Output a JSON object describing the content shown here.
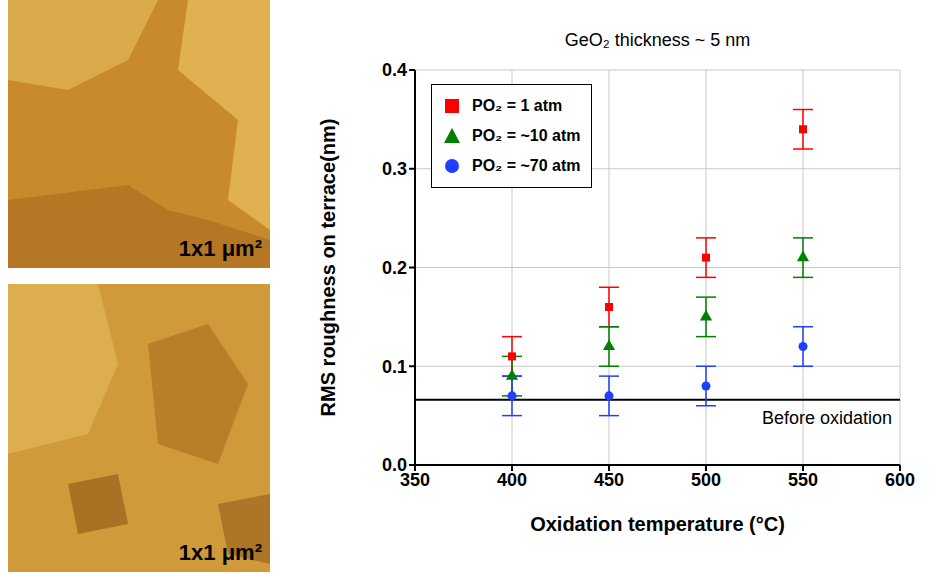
{
  "images": [
    {
      "label": "1x1 μm²"
    },
    {
      "label": "1x1 μm²"
    }
  ],
  "chart_data": {
    "type": "scatter",
    "title": "GeO₂ thickness ~ 5 nm",
    "x_label": "Oxidation temperature (°C)",
    "y_label": "RMS roughness on terrace(nm)",
    "xlim": [
      350,
      600
    ],
    "xticks": [
      350,
      400,
      450,
      500,
      550,
      600
    ],
    "ylim": [
      0,
      0.4
    ],
    "yticks": [
      {
        "value": 0,
        "label": "0.0"
      },
      0.1,
      0.2,
      0.3,
      0.4
    ],
    "grid": true,
    "legend": "upper left",
    "reference_line": {
      "value": 0.066,
      "label": "Before oxidation"
    },
    "series": [
      {
        "name": "PO₂ = 1 atm",
        "color": "#ff0000",
        "marker": "square",
        "x": [
          400,
          450,
          500,
          550
        ],
        "values": [
          0.11,
          0.16,
          0.21,
          0.34
        ],
        "errors": [
          0.02,
          0.02,
          0.02,
          0.02
        ]
      },
      {
        "name": "PO₂ = ~10 atm",
        "color": "#008000",
        "marker": "triangle",
        "x": [
          400,
          450,
          500,
          550
        ],
        "values": [
          0.09,
          0.12,
          0.15,
          0.21
        ],
        "errors": [
          0.02,
          0.02,
          0.02,
          0.02
        ]
      },
      {
        "name": "PO₂ = ~70 atm",
        "color": "#1f3fff",
        "marker": "circle",
        "x": [
          400,
          450,
          500,
          550
        ],
        "values": [
          0.07,
          0.07,
          0.08,
          0.12
        ],
        "errors": [
          0.02,
          0.02,
          0.02,
          0.02
        ]
      }
    ]
  }
}
